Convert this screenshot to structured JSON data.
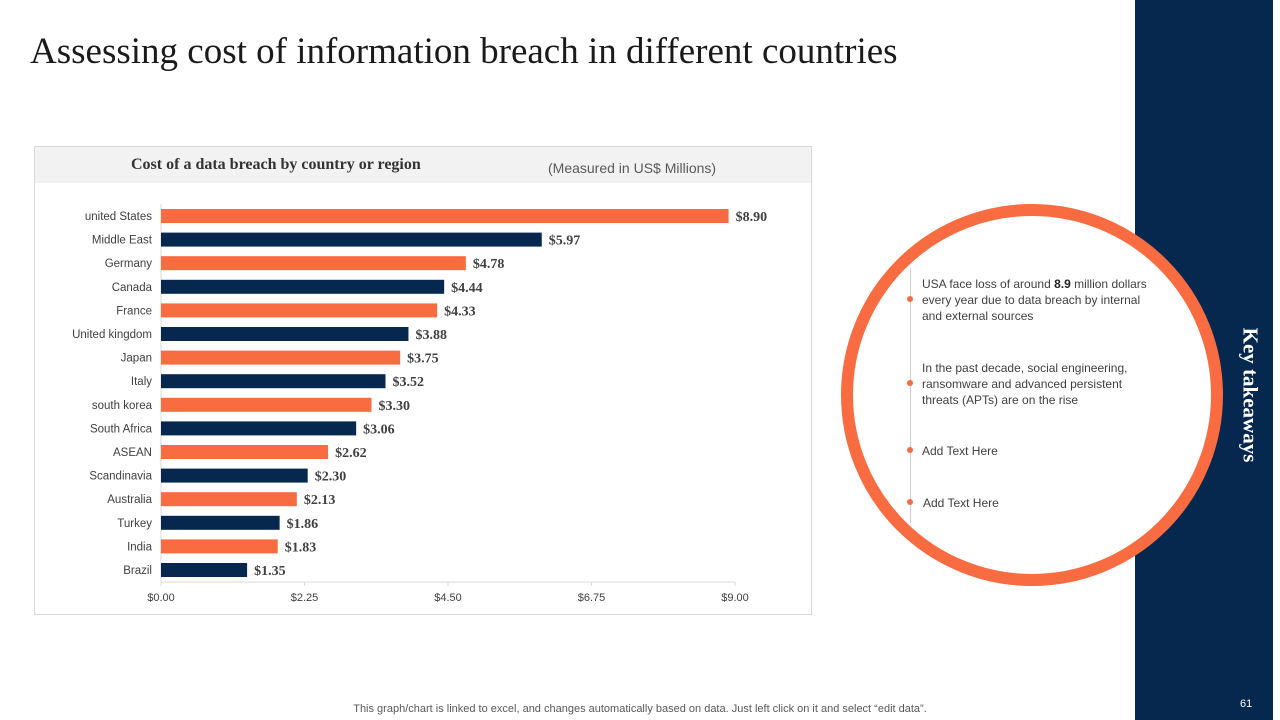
{
  "title": "Assessing cost of information breach in different countries",
  "chart_data": {
    "type": "bar",
    "orientation": "horizontal",
    "title": "Cost of a data breach by country or region",
    "subtitle": "(Measured  in US$ Millions)",
    "categories": [
      "united States",
      "Middle East",
      "Germany",
      "Canada",
      "France",
      "United kingdom",
      "Japan",
      "Italy",
      "south korea",
      "South Africa",
      "ASEAN",
      "Scandinavia",
      "Australia",
      "Turkey",
      "India",
      "Brazil"
    ],
    "values": [
      8.9,
      5.97,
      4.78,
      4.44,
      4.33,
      3.88,
      3.75,
      3.52,
      3.3,
      3.06,
      2.62,
      2.3,
      2.13,
      1.86,
      1.83,
      1.35
    ],
    "data_labels": [
      "$8.90",
      "$5.97",
      "$4.78",
      "$4.44",
      "$4.33",
      "$3.88",
      "$3.75",
      "$3.52",
      "$3.30",
      "$3.06",
      "$2.62",
      "$2.30",
      "$2.13",
      "$1.86",
      "$1.83",
      "$1.35"
    ],
    "xlim": [
      0,
      9
    ],
    "x_ticks": [
      "$0.00",
      "$2.25",
      "$4.50",
      "$6.75",
      "$9.00"
    ],
    "x_tick_values": [
      0,
      2.25,
      4.5,
      6.75,
      9
    ],
    "grid": false,
    "colors": [
      "#f96b40",
      "#06284f"
    ]
  },
  "takeaways": {
    "label": "Key takeaways",
    "items": [
      {
        "pre": "USA face loss of around ",
        "bold": "8.9",
        "post": " million dollars every year due to data breach by internal and external sources"
      },
      {
        "pre": "In the past decade, social engineering, ransomware and advanced persistent threats (APTs) are on the rise",
        "bold": "",
        "post": ""
      },
      {
        "pre": "Add Text Here",
        "bold": "",
        "post": ""
      },
      {
        "pre": "Add Text Here",
        "bold": "",
        "post": ""
      }
    ]
  },
  "footnote": "This graph/chart is linked to excel, and changes automatically based on data. Just left click on it and select “edit data”.",
  "page_number": "61",
  "colors": {
    "accent": "#f96b40",
    "navy": "#06284f"
  }
}
